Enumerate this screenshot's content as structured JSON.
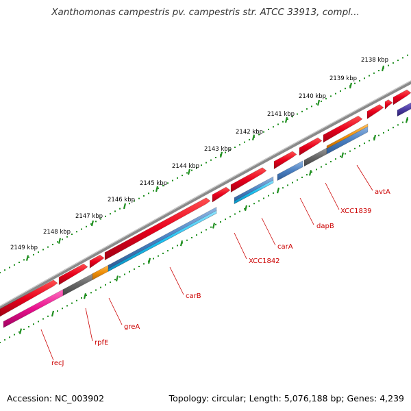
{
  "title": "Xanthomonas campestris pv. campestris str. ATCC 33913, compl...",
  "footer": {
    "accession": "Accession: NC_003902",
    "summary": "Topology: circular; Length: 5,076,188 bp; Genes: 4,239"
  },
  "scale": {
    "unit": "kbp",
    "labels": [
      "2138 kbp",
      "2139 kbp",
      "2140 kbp",
      "2141 kbp",
      "2142 kbp",
      "2143 kbp",
      "2144 kbp",
      "2145 kbp",
      "2146 kbp",
      "2147 kbp",
      "2148 kbp",
      "2149 kbp"
    ]
  },
  "genes": [
    "avtA",
    "XCC1839",
    "dapB",
    "carA",
    "XCC1842",
    "carB",
    "greA",
    "rpfE",
    "recJ"
  ],
  "colors": {
    "forward_cds": "#e8001c",
    "reverse_cds_blue": "#4a7fc1",
    "reverse_cds_cyan": "#1ec0f0",
    "reverse_cds_orange": "#f0900a",
    "reverse_cds_gray": "#666666",
    "reverse_cds_pink": "#e8108c",
    "backbone": "#8a8a8a",
    "ticks": "#1f8f1f",
    "labels": "#cc0000"
  }
}
